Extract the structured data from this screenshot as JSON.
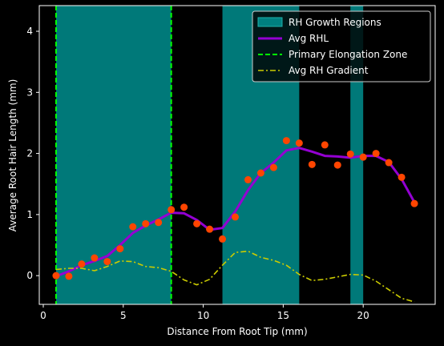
{
  "chart_data": {
    "type": "line",
    "xlabel": "Distance From Root Tip (mm)",
    "ylabel": "Average Root Hair Length (mm)",
    "xlim": [
      -0.25,
      24.5
    ],
    "ylim": [
      -0.47,
      4.42
    ],
    "xticks": [
      0,
      5,
      10,
      15,
      20
    ],
    "yticks": [
      0,
      1,
      2,
      3,
      4
    ],
    "grid": false,
    "legend_position": "top-right",
    "legend": [
      {
        "label": "RH Growth Regions",
        "kind": "patch",
        "color": "#008080"
      },
      {
        "label": "Avg RHL",
        "kind": "line",
        "color": "#9400D3"
      },
      {
        "label": "Primary Elongation Zone",
        "kind": "dashed",
        "color": "#00FF00"
      },
      {
        "label": "Avg RH Gradient",
        "kind": "dashdot",
        "color": "#CCCC00"
      }
    ],
    "growth_regions": [
      [
        0.8,
        8.0
      ],
      [
        11.2,
        16.0
      ],
      [
        19.2,
        20.0
      ]
    ],
    "elongation_zone_lines": [
      0.8,
      8.0
    ],
    "scatter": {
      "color": "#FF4500",
      "x": [
        0.8,
        1.6,
        2.4,
        3.2,
        4.0,
        4.8,
        5.6,
        6.4,
        7.2,
        8.0,
        8.8,
        9.6,
        10.4,
        11.2,
        12.0,
        12.8,
        13.6,
        14.4,
        15.2,
        16.0,
        16.8,
        17.6,
        18.4,
        19.2,
        20.0,
        20.8,
        21.6,
        22.4,
        23.2
      ],
      "y": [
        0.0,
        -0.01,
        0.19,
        0.29,
        0.23,
        0.44,
        0.8,
        0.85,
        0.87,
        1.08,
        1.12,
        0.85,
        0.76,
        0.6,
        0.96,
        1.57,
        1.68,
        1.77,
        2.21,
        2.17,
        1.82,
        2.14,
        1.81,
        1.99,
        1.94,
        2.0,
        1.85,
        1.61,
        1.18
      ]
    },
    "series": [
      {
        "name": "Avg RHL",
        "color": "#9400D3",
        "x": [
          0.8,
          1.6,
          2.4,
          3.2,
          4.0,
          4.8,
          5.6,
          6.4,
          7.2,
          8.0,
          8.8,
          9.6,
          10.4,
          11.2,
          12.0,
          12.8,
          13.6,
          14.4,
          15.2,
          16.0,
          16.8,
          17.6,
          18.4,
          19.2,
          20.0,
          20.8,
          21.6,
          22.4,
          23.2
        ],
        "y": [
          -0.01,
          0.07,
          0.17,
          0.24,
          0.32,
          0.5,
          0.7,
          0.82,
          0.92,
          1.03,
          1.02,
          0.91,
          0.75,
          0.78,
          1.05,
          1.4,
          1.68,
          1.85,
          2.05,
          2.09,
          2.03,
          1.96,
          1.95,
          1.93,
          1.96,
          1.96,
          1.86,
          1.58,
          1.2
        ]
      },
      {
        "name": "Avg RH Gradient",
        "color": "#CCCC00",
        "x": [
          0.8,
          1.6,
          2.4,
          3.2,
          4.0,
          4.8,
          5.6,
          6.4,
          7.2,
          8.0,
          8.8,
          9.6,
          10.4,
          11.2,
          12.0,
          12.8,
          13.6,
          14.4,
          15.2,
          16.0,
          16.8,
          17.6,
          18.4,
          19.2,
          20.0,
          20.8,
          21.6,
          22.4,
          23.2
        ],
        "y": [
          0.1,
          0.12,
          0.12,
          0.08,
          0.15,
          0.24,
          0.23,
          0.15,
          0.13,
          0.07,
          -0.07,
          -0.15,
          -0.06,
          0.17,
          0.38,
          0.4,
          0.3,
          0.25,
          0.17,
          0.02,
          -0.08,
          -0.06,
          -0.02,
          0.02,
          0.01,
          -0.09,
          -0.23,
          -0.37,
          -0.43
        ]
      }
    ]
  }
}
